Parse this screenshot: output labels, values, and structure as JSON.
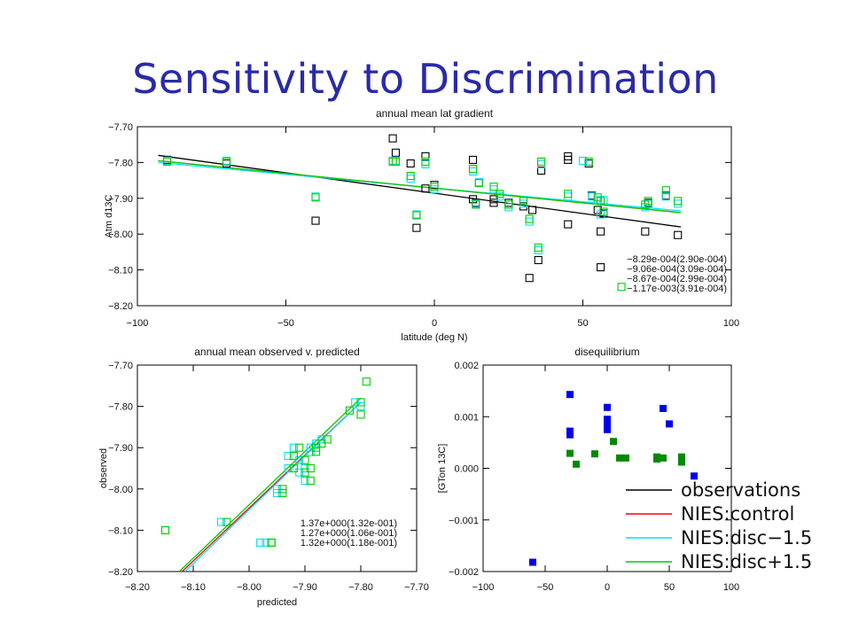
{
  "slide": {
    "title": "Sensitivity to Discrimination"
  },
  "colors": {
    "observations": "#000000",
    "control": "#ff0000",
    "disc_minus": "#00e0ff",
    "disc_plus": "#00cc00",
    "obs_markers": "#0000ee",
    "pred_markers": "#008a00"
  },
  "chart_data": [
    {
      "type": "scatter",
      "title": "annual mean lat gradient",
      "xlabel": "latitude (deg N)",
      "ylabel": "Atm d13C",
      "xlim": [
        -100,
        100
      ],
      "ylim": [
        -8.2,
        -7.7
      ],
      "xticks": [
        "-100",
        "-50",
        "0",
        "50",
        "100"
      ],
      "yticks": [
        "-7.70",
        "-7.80",
        "-7.90",
        "-8.00",
        "-8.10",
        "-8.20"
      ],
      "series": [
        {
          "color_key": "observations",
          "x": [
            -90,
            -70,
            -40,
            -14,
            -13,
            -8,
            -6,
            -3,
            -3,
            0,
            13,
            13,
            14,
            20,
            20,
            25,
            30,
            32,
            33,
            35,
            36,
            45,
            45,
            45,
            52,
            53,
            55,
            56,
            56,
            57,
            71,
            72,
            78,
            82
          ],
          "y": [
            -7.8,
            -7.81,
            -7.97,
            -7.74,
            -7.78,
            -7.81,
            -7.99,
            -7.79,
            -7.88,
            -7.87,
            -7.8,
            -7.91,
            -7.92,
            -7.91,
            -7.92,
            -7.92,
            -7.93,
            -8.13,
            -7.94,
            -8.08,
            -7.83,
            -7.98,
            -7.79,
            -7.8,
            -7.81,
            -7.9,
            -7.94,
            -8.0,
            -8.1,
            -7.95,
            -8.0,
            -7.92,
            -7.9,
            -8.01
          ]
        },
        {
          "color_key": "disc_minus",
          "x": [
            -90,
            -70,
            -40,
            -14,
            -13,
            -8,
            -6,
            -3,
            0,
            13,
            14,
            15,
            20,
            22,
            25,
            30,
            32,
            35,
            36,
            45,
            50,
            53,
            55,
            56,
            57,
            71,
            72,
            78,
            82
          ],
          "y": [
            -7.8,
            -7.8,
            -7.9,
            -7.8,
            -7.8,
            -7.85,
            -7.95,
            -7.81,
            -7.88,
            -7.83,
            -7.92,
            -7.86,
            -7.88,
            -7.9,
            -7.93,
            -7.92,
            -7.97,
            -8.05,
            -7.81,
            -7.9,
            -7.8,
            -7.9,
            -7.91,
            -7.95,
            -7.91,
            -7.93,
            -7.92,
            -7.9,
            -7.92
          ]
        },
        {
          "color_key": "disc_plus",
          "x": [
            -90,
            -70,
            -40,
            -14,
            -13,
            -8,
            -6,
            -3,
            0,
            13,
            14,
            15,
            20,
            22,
            25,
            30,
            32,
            35,
            36,
            45,
            52,
            55,
            56,
            57,
            63,
            71,
            72,
            78,
            82
          ],
          "y": [
            -7.8,
            -7.8,
            -7.9,
            -7.8,
            -7.8,
            -7.84,
            -7.95,
            -7.8,
            -7.87,
            -7.82,
            -7.92,
            -7.86,
            -7.87,
            -7.89,
            -7.92,
            -7.91,
            -7.96,
            -8.04,
            -7.8,
            -7.89,
            -7.8,
            -7.9,
            -7.91,
            -7.94,
            -8.15,
            -7.92,
            -7.91,
            -7.88,
            -7.91
          ]
        }
      ],
      "fits": [
        {
          "color_key": "observations",
          "x": [
            -93,
            83
          ],
          "y": [
            -7.78,
            -7.98
          ]
        },
        {
          "color_key": "control",
          "x": [
            -93,
            83
          ],
          "y": [
            -7.795,
            -7.94
          ]
        },
        {
          "color_key": "disc_minus",
          "x": [
            -93,
            83
          ],
          "y": [
            -7.8,
            -7.935
          ]
        },
        {
          "color_key": "disc_plus",
          "x": [
            -93,
            83
          ],
          "y": [
            -7.795,
            -7.94
          ]
        }
      ],
      "annotations": [
        {
          "text": "-8.29e-004(2.90e-004)",
          "color_key": "disc_plus"
        },
        {
          "text": "-9.06e-004(3.09e-004)",
          "color_key": "disc_minus"
        },
        {
          "text": "-8.67e-004(2.99e-004)",
          "color_key": "control"
        },
        {
          "text": "-1.17e-003(3.91e-004)",
          "color_key": "observations"
        }
      ]
    },
    {
      "type": "scatter",
      "title": "annual mean observed v. predicted",
      "xlabel": "predicted",
      "ylabel": "observed",
      "xlim": [
        -8.2,
        -7.7
      ],
      "ylim": [
        -8.2,
        -7.7
      ],
      "xticks": [
        "-8.20",
        "-8.10",
        "-8.00",
        "-7.90",
        "-7.80",
        "-7.70"
      ],
      "yticks": [
        "-7.70",
        "-7.80",
        "-7.90",
        "-8.00",
        "-8.10",
        "-8.20"
      ],
      "series": [
        {
          "color_key": "disc_minus",
          "x": [
            -8.15,
            -8.05,
            -7.98,
            -7.95,
            -7.93,
            -7.92,
            -7.91,
            -7.9,
            -7.89,
            -7.88,
            -7.87,
            -7.81,
            -7.8,
            -7.97,
            -7.95,
            -7.91,
            -7.89,
            -7.93,
            -7.9
          ],
          "y": [
            -8.1,
            -8.08,
            -8.13,
            -8.0,
            -7.92,
            -7.9,
            -7.96,
            -7.95,
            -7.91,
            -7.89,
            -7.88,
            -7.79,
            -7.8,
            -8.13,
            -8.01,
            -7.93,
            -7.9,
            -7.95,
            -7.98
          ]
        },
        {
          "color_key": "disc_plus",
          "x": [
            -8.15,
            -8.04,
            -7.96,
            -7.94,
            -7.92,
            -7.91,
            -7.9,
            -7.89,
            -7.88,
            -7.87,
            -7.86,
            -7.8,
            -7.79,
            -7.96,
            -7.94,
            -7.9,
            -7.88,
            -7.92,
            -7.89,
            -7.82,
            -7.8
          ],
          "y": [
            -8.1,
            -8.08,
            -8.13,
            -8.0,
            -7.92,
            -7.9,
            -7.96,
            -7.95,
            -7.91,
            -7.89,
            -7.88,
            -7.79,
            -7.74,
            -8.13,
            -8.01,
            -7.93,
            -7.9,
            -7.95,
            -7.98,
            -7.81,
            -7.82
          ]
        }
      ],
      "fits": [
        {
          "color_key": "control",
          "x": [
            -8.12,
            -7.8
          ],
          "y": [
            -8.2,
            -7.79
          ]
        },
        {
          "color_key": "disc_minus",
          "x": [
            -8.115,
            -7.8
          ],
          "y": [
            -8.2,
            -7.79
          ]
        },
        {
          "color_key": "disc_plus",
          "x": [
            -8.125,
            -7.8
          ],
          "y": [
            -8.2,
            -7.78
          ]
        }
      ],
      "annotations": [
        {
          "text": "1.37e+000(1.32e-001)",
          "color_key": "disc_plus"
        },
        {
          "text": "1.27e+000(1.06e-001)",
          "color_key": "disc_minus"
        },
        {
          "text": "1.32e+000(1.18e-001)",
          "color_key": "control"
        }
      ]
    },
    {
      "type": "scatter",
      "title": "disequilibrium",
      "xlabel": "",
      "ylabel": "[GTon 13C]",
      "xlim": [
        -100,
        100
      ],
      "ylim": [
        -0.002,
        0.002
      ],
      "xticks": [
        "-100",
        "-50",
        "0",
        "50",
        "100"
      ],
      "yticks": [
        "0.002",
        "0.001",
        "0.000",
        "-0.001",
        "-0.002"
      ],
      "series": [
        {
          "color_key": "obs_markers",
          "x": [
            -60,
            -30,
            -30,
            -30,
            0,
            0,
            0,
            0,
            45,
            50,
            70
          ],
          "y": [
            -0.00182,
            0.00143,
            0.00072,
            0.00065,
            0.00118,
            0.00095,
            0.00085,
            0.00075,
            0.00116,
            0.00086,
            -0.00015
          ]
        },
        {
          "color_key": "pred_markers",
          "x": [
            -30,
            -25,
            -10,
            5,
            10,
            15,
            40,
            40,
            45,
            60,
            60
          ],
          "y": [
            0.00029,
            8e-05,
            0.00028,
            0.00052,
            0.0002,
            0.0002,
            0.00022,
            0.00018,
            0.0002,
            0.00022,
            0.00012
          ]
        }
      ]
    }
  ],
  "legend": {
    "items": [
      {
        "label": "observations",
        "color_key": "observations"
      },
      {
        "label": "NIES:control",
        "color_key": "control"
      },
      {
        "label": "NIES:disc−1.5",
        "color_key": "disc_minus"
      },
      {
        "label": "NIES:disc+1.5",
        "color_key": "disc_plus"
      }
    ]
  }
}
